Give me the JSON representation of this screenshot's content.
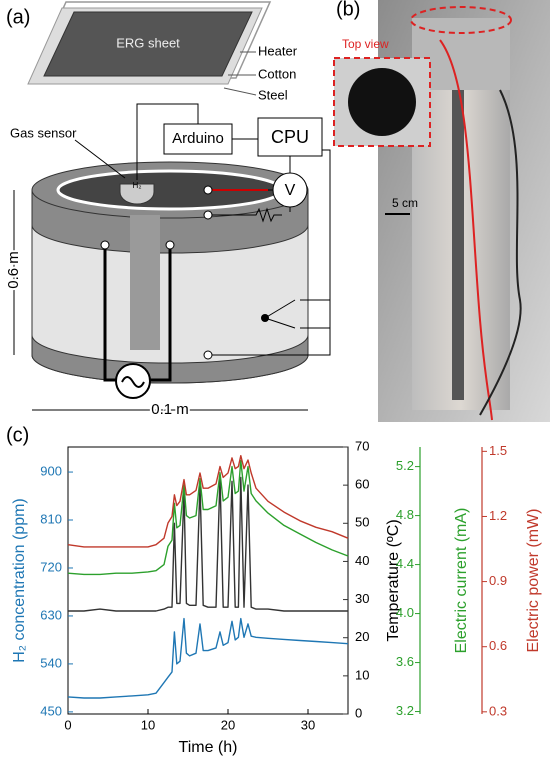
{
  "panel_a": {
    "label": "(a)",
    "sheet": "ERG sheet",
    "layers": [
      "Heater",
      "Cotton",
      "Steel"
    ],
    "gas_sensor": "Gas sensor",
    "h2": "H₂",
    "arduino": "Arduino",
    "cpu": "CPU",
    "voltmeter": "V",
    "height": "0.6 m",
    "width": "0.1 m"
  },
  "panel_b": {
    "label": "(b)",
    "top_view": "Top view",
    "scale": "5 cm"
  },
  "chart_data": {
    "type": "line",
    "label": "(c)",
    "xlabel": "Time (h)",
    "ylabel": "H₂ concentration (ppm)",
    "y2label": "Temperature (ºC)",
    "y3label": "Electric current (mA)",
    "y4label": "Electric power (mW)",
    "xlim": [
      0,
      35
    ],
    "xticks": [
      0,
      10,
      20,
      30
    ],
    "ylim": [
      446,
      947
    ],
    "yticks": [
      450,
      540,
      630,
      720,
      810,
      900
    ],
    "y2lim": [
      0,
      70
    ],
    "y2ticks": [
      0,
      10,
      20,
      30,
      40,
      50,
      60,
      70
    ],
    "y3lim": [
      3.18,
      5.36
    ],
    "y3ticks": [
      3.2,
      3.6,
      {
        "value": 4,
        "label": "4.0"
      },
      4.4,
      4.8,
      5.2
    ],
    "y4lim": [
      0.29,
      1.52
    ],
    "y4ticks": [
      0.3,
      0.6,
      0.9,
      1.2,
      1.5
    ],
    "x": [
      0,
      2,
      4,
      6,
      8,
      10,
      11,
      12,
      12.5,
      13,
      13.3,
      13.6,
      14,
      14.5,
      14.8,
      15.2,
      16,
      16.5,
      16.9,
      17.5,
      18.5,
      19,
      19.4,
      20,
      20.5,
      20.9,
      21.3,
      21.6,
      22,
      22.5,
      22.9,
      23.5,
      25,
      27,
      29,
      31,
      33,
      35
    ],
    "series": [
      {
        "color": "#1f77b4",
        "axis": "y",
        "values": [
          478,
          476,
          476,
          478,
          480,
          482,
          485,
          505,
          515,
          525,
          600,
          540,
          545,
          625,
          560,
          555,
          560,
          615,
          565,
          565,
          570,
          600,
          575,
          580,
          620,
          585,
          590,
          625,
          590,
          615,
          592,
          590,
          588,
          586,
          584,
          582,
          580,
          578
        ]
      },
      {
        "color": "#333333",
        "axis": "y2",
        "values": [
          27,
          27,
          27.5,
          27,
          27,
          27,
          27,
          27.5,
          28,
          28,
          50,
          29,
          29,
          58,
          29,
          28.5,
          28.5,
          60,
          28.5,
          28,
          28,
          62,
          28,
          28,
          61,
          28,
          28,
          62,
          28,
          60,
          28,
          27.5,
          27.5,
          27,
          27,
          27,
          27,
          27
        ]
      },
      {
        "color": "#2ca02c",
        "axis": "y3",
        "values": [
          4.33,
          4.32,
          4.32,
          4.33,
          4.33,
          4.34,
          4.35,
          4.4,
          4.55,
          4.6,
          4.9,
          4.7,
          4.72,
          5.05,
          4.8,
          4.78,
          4.8,
          5.1,
          4.85,
          4.85,
          4.88,
          5.15,
          4.92,
          4.95,
          5.2,
          4.98,
          5.0,
          5.25,
          5.0,
          5.2,
          4.98,
          4.92,
          4.82,
          4.72,
          4.65,
          4.58,
          4.52,
          4.47
        ]
      },
      {
        "color": "#c0392b",
        "axis": "y4",
        "values": [
          1.07,
          1.06,
          1.06,
          1.06,
          1.06,
          1.06,
          1.07,
          1.1,
          1.17,
          1.2,
          1.3,
          1.25,
          1.27,
          1.37,
          1.3,
          1.3,
          1.32,
          1.4,
          1.33,
          1.33,
          1.35,
          1.43,
          1.38,
          1.4,
          1.47,
          1.42,
          1.43,
          1.48,
          1.42,
          1.46,
          1.4,
          1.33,
          1.27,
          1.22,
          1.18,
          1.15,
          1.13,
          1.1
        ]
      }
    ]
  }
}
